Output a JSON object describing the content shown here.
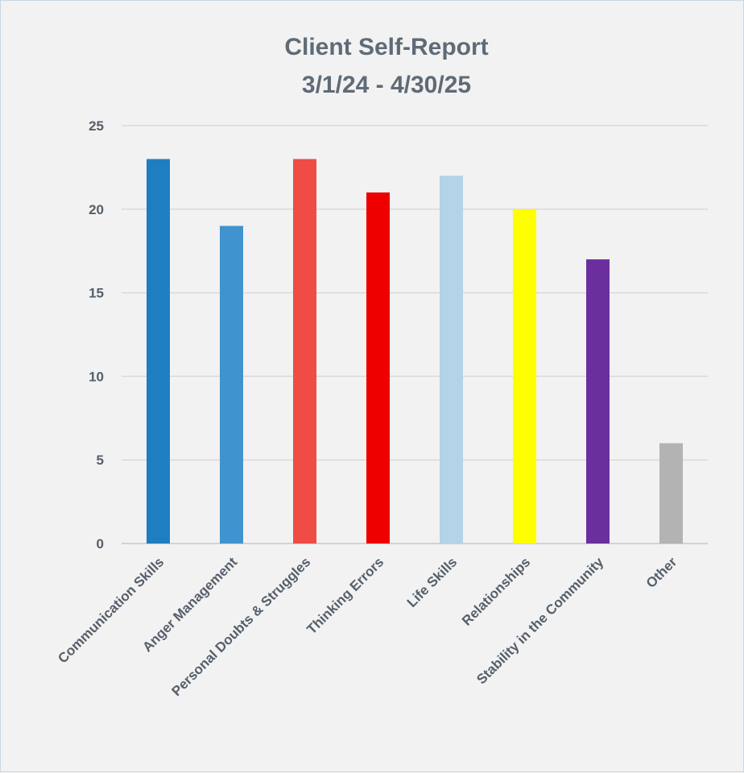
{
  "chart_data": {
    "type": "bar",
    "title": "Client Self-Report",
    "subtitle": "3/1/24 - 4/30/25",
    "xlabel": "",
    "ylabel": "",
    "ylim": [
      0,
      25
    ],
    "yticks": [
      0,
      5,
      10,
      15,
      20,
      25
    ],
    "grid": true,
    "legend": "none",
    "categories": [
      "Communication Skills",
      "Anger Management",
      "Personal Doubts & Struggles",
      "Thinking Errors",
      "Life Skills",
      "Relationships",
      "Stability in the Community",
      "Other"
    ],
    "values": [
      23,
      19,
      23,
      21,
      22,
      20,
      17,
      6
    ],
    "colors": [
      "#1f7ec2",
      "#3f94cf",
      "#ef4c45",
      "#ee0000",
      "#b3d3e9",
      "#ffff00",
      "#6b2f9d",
      "#b3b3b3"
    ]
  }
}
